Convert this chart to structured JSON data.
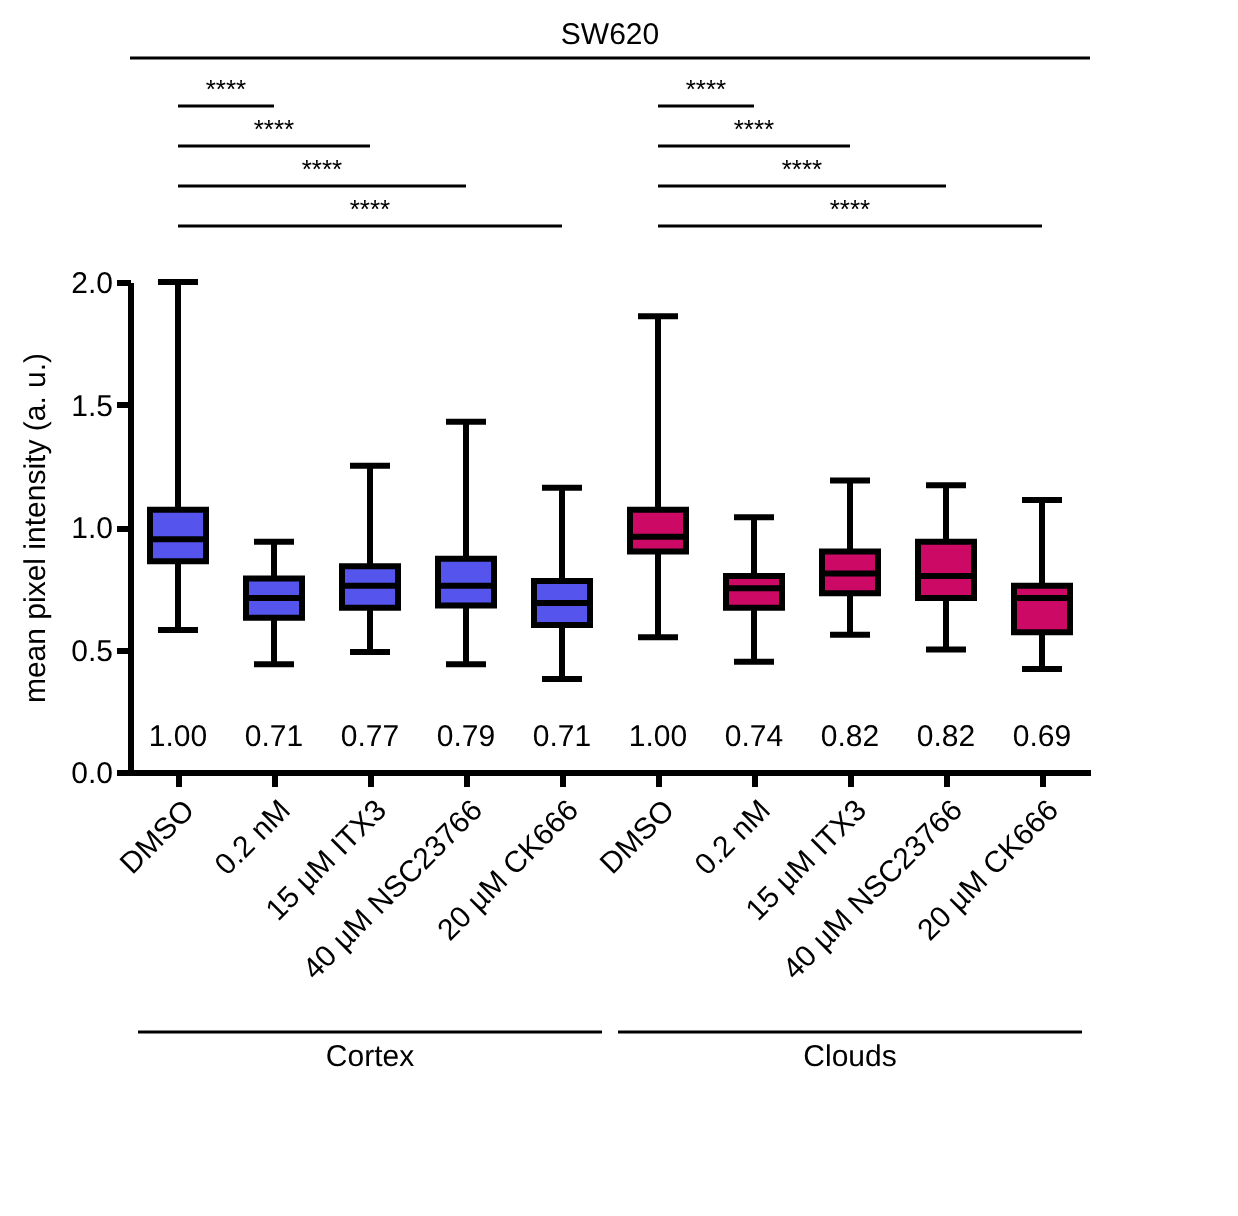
{
  "chart_data": {
    "type": "box",
    "title": "SW620",
    "ylabel": "mean pixel intensity (a. u.)",
    "categories": [
      "DMSO",
      "0.2 nM",
      "15 µM ITX3",
      "40 µM NSC23766",
      "20 µM CK666",
      "DMSO",
      "0.2 nM",
      "15 µM ITX3",
      "40 µM NSC23766",
      "20 µM CK666"
    ],
    "boxes": [
      {
        "low": 0.58,
        "q1": 0.86,
        "median": 0.95,
        "q3": 1.07,
        "high": 2.0
      },
      {
        "low": 0.44,
        "q1": 0.63,
        "median": 0.71,
        "q3": 0.79,
        "high": 0.94
      },
      {
        "low": 0.49,
        "q1": 0.67,
        "median": 0.76,
        "q3": 0.84,
        "high": 1.25
      },
      {
        "low": 0.44,
        "q1": 0.68,
        "median": 0.76,
        "q3": 0.87,
        "high": 1.43
      },
      {
        "low": 0.38,
        "q1": 0.6,
        "median": 0.69,
        "q3": 0.78,
        "high": 1.16
      },
      {
        "low": 0.55,
        "q1": 0.9,
        "median": 0.96,
        "q3": 1.07,
        "high": 1.86
      },
      {
        "low": 0.45,
        "q1": 0.67,
        "median": 0.75,
        "q3": 0.8,
        "high": 1.04
      },
      {
        "low": 0.56,
        "q1": 0.73,
        "median": 0.81,
        "q3": 0.9,
        "high": 1.19
      },
      {
        "low": 0.5,
        "q1": 0.71,
        "median": 0.8,
        "q3": 0.94,
        "high": 1.17
      },
      {
        "low": 0.42,
        "q1": 0.57,
        "median": 0.71,
        "q3": 0.76,
        "high": 1.11
      }
    ],
    "colors": [
      "#5555ee",
      "#5555ee",
      "#5555ee",
      "#5555ee",
      "#5555ee",
      "#cc0a66",
      "#cc0a66",
      "#cc0a66",
      "#cc0a66",
      "#cc0a66"
    ],
    "value_labels": [
      "1.00",
      "0.71",
      "0.77",
      "0.79",
      "0.71",
      "1.00",
      "0.74",
      "0.82",
      "0.82",
      "0.69"
    ],
    "ylim": [
      0,
      2
    ],
    "yticks": [
      {
        "value": 0,
        "label": "0.0"
      },
      0.5,
      {
        "value": 1,
        "label": "1.0"
      },
      1.5,
      {
        "value": 2,
        "label": "2.0"
      }
    ],
    "annotations": [
      "****",
      "****",
      "****",
      "****",
      "****",
      "****",
      "****",
      "****",
      "Cortex",
      "Clouds"
    ],
    "grid": false
  }
}
